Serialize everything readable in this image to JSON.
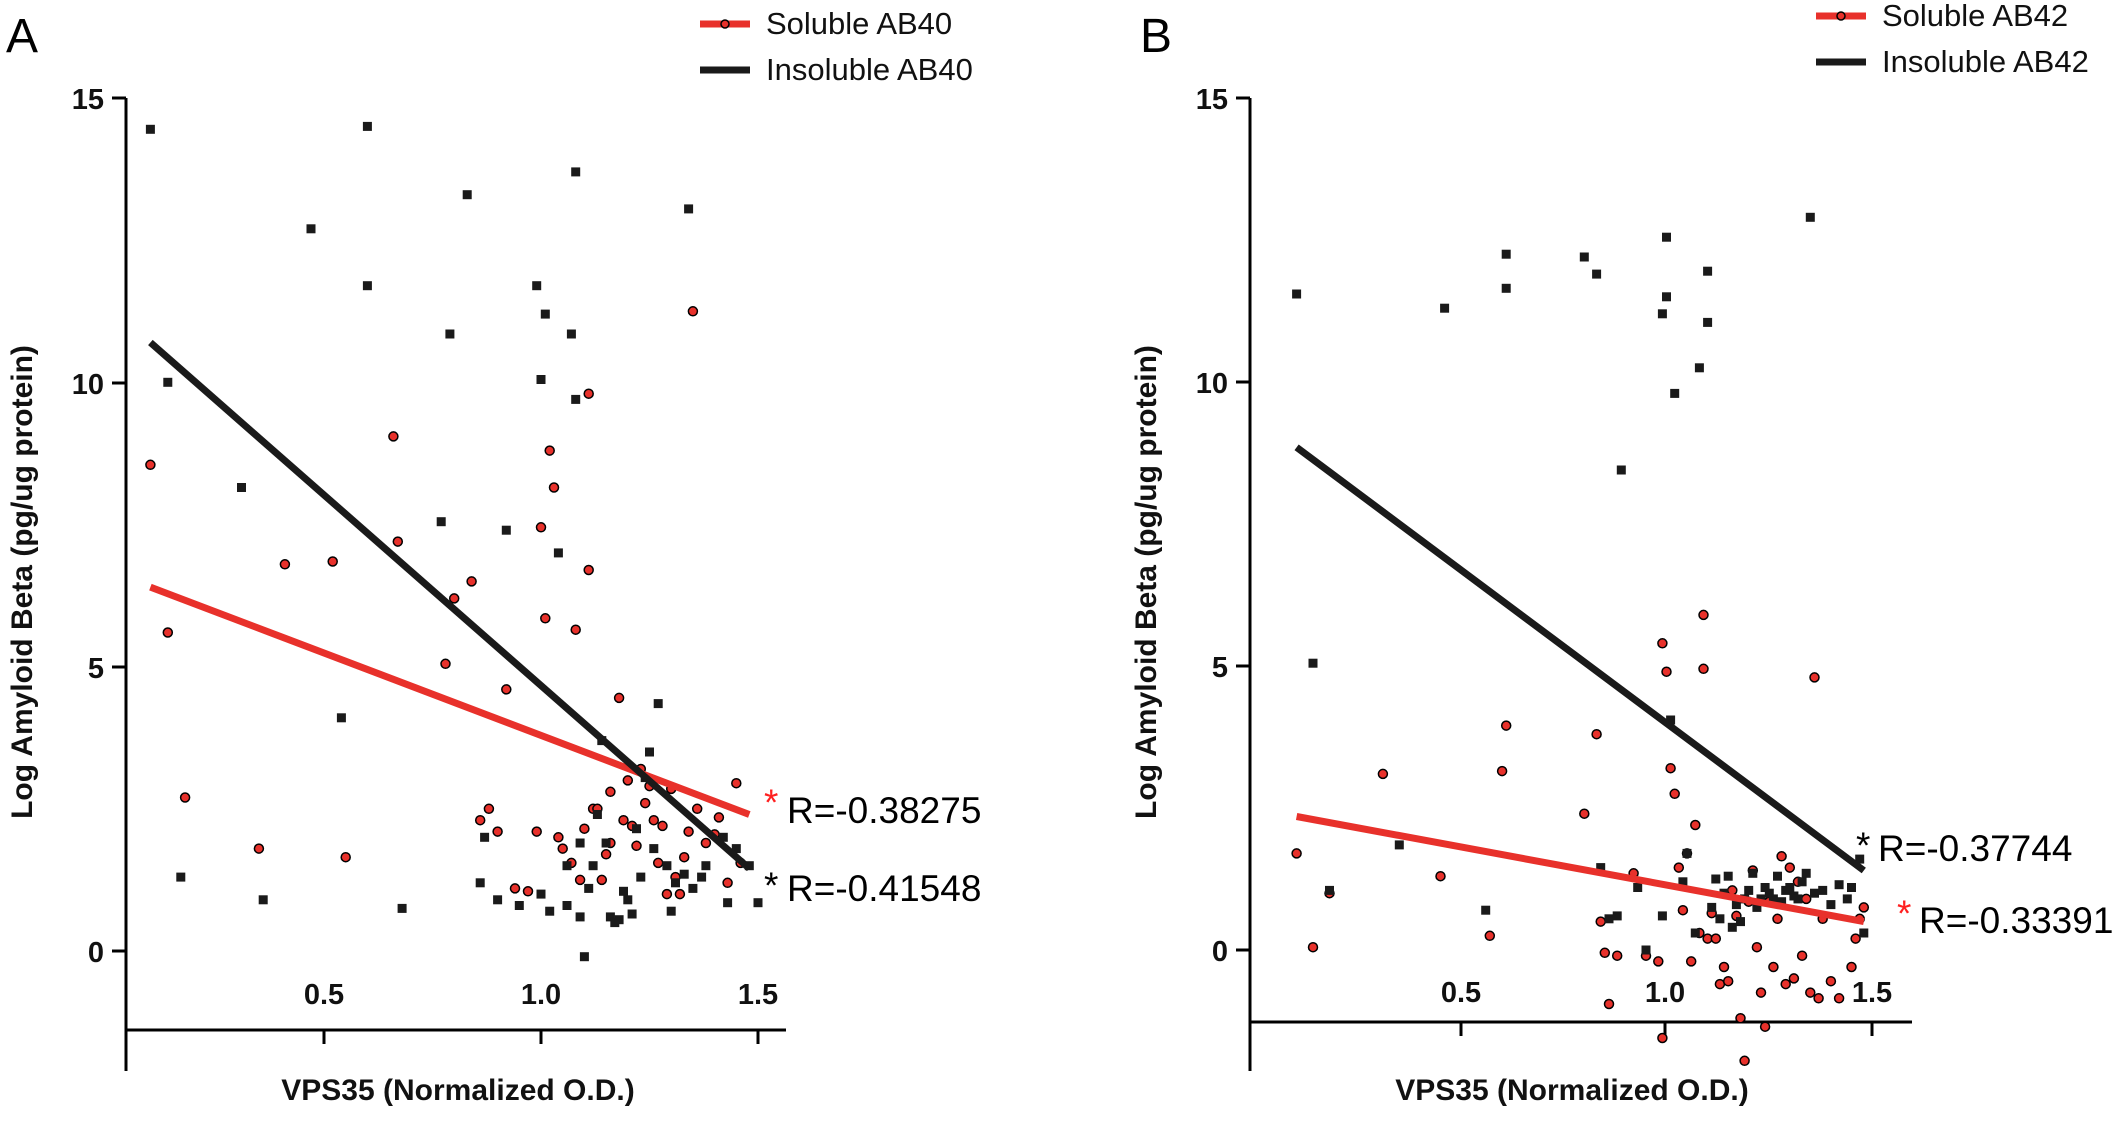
{
  "chart_data": [
    {
      "panel": "A",
      "type": "scatter",
      "xlabel": "VPS35  (Normalized O.D.)",
      "ylabel": "Log Amyloid  Beta (pg/ug protein)",
      "xlim": [
        0.05,
        1.55
      ],
      "ylim": [
        -1.8,
        15.3
      ],
      "x_ticks": [
        0.5,
        1.0,
        1.5
      ],
      "x_tick_labels": [
        "0.5",
        "1.0",
        "1.5"
      ],
      "y_ticks": [
        0,
        5,
        10,
        15
      ],
      "y_tick_labels": [
        "0",
        "5",
        "10",
        "15"
      ],
      "legend_position": "top-right",
      "series": [
        {
          "name": "Soluble AB40",
          "marker": "circle",
          "marker_color": "#e8312b",
          "line_color": "#e8312b",
          "trend": [
            [
              0.1,
              6.4
            ],
            [
              1.48,
              2.4
            ]
          ],
          "r_label": "R=-0.38275",
          "r_star": "*",
          "r_star_color": "#ff2020",
          "points": [
            [
              0.1,
              8.55
            ],
            [
              0.14,
              5.6
            ],
            [
              0.18,
              2.7
            ],
            [
              0.35,
              1.8
            ],
            [
              0.41,
              6.8
            ],
            [
              0.52,
              6.85
            ],
            [
              0.55,
              1.65
            ],
            [
              0.66,
              9.05
            ],
            [
              0.67,
              7.2
            ],
            [
              0.78,
              5.05
            ],
            [
              0.8,
              6.2
            ],
            [
              0.84,
              6.5
            ],
            [
              0.86,
              2.3
            ],
            [
              0.88,
              2.5
            ],
            [
              0.9,
              2.1
            ],
            [
              0.92,
              4.6
            ],
            [
              0.94,
              1.1
            ],
            [
              0.97,
              1.05
            ],
            [
              0.99,
              2.1
            ],
            [
              1.0,
              7.45
            ],
            [
              1.01,
              5.85
            ],
            [
              1.02,
              8.8
            ],
            [
              1.03,
              8.15
            ],
            [
              1.04,
              2.0
            ],
            [
              1.05,
              1.8
            ],
            [
              1.07,
              1.55
            ],
            [
              1.08,
              5.65
            ],
            [
              1.09,
              1.25
            ],
            [
              1.1,
              2.15
            ],
            [
              1.11,
              9.8
            ],
            [
              1.11,
              6.7
            ],
            [
              1.12,
              2.5
            ],
            [
              1.13,
              2.5
            ],
            [
              1.14,
              1.25
            ],
            [
              1.15,
              1.7
            ],
            [
              1.16,
              2.8
            ],
            [
              1.16,
              1.9
            ],
            [
              1.18,
              4.45
            ],
            [
              1.19,
              2.3
            ],
            [
              1.2,
              3.0
            ],
            [
              1.21,
              2.2
            ],
            [
              1.22,
              1.85
            ],
            [
              1.23,
              3.2
            ],
            [
              1.24,
              2.6
            ],
            [
              1.25,
              2.9
            ],
            [
              1.26,
              2.3
            ],
            [
              1.27,
              1.55
            ],
            [
              1.28,
              2.2
            ],
            [
              1.29,
              1.0
            ],
            [
              1.3,
              2.85
            ],
            [
              1.31,
              1.3
            ],
            [
              1.32,
              1.0
            ],
            [
              1.33,
              1.65
            ],
            [
              1.34,
              2.1
            ],
            [
              1.35,
              11.25
            ],
            [
              1.36,
              2.5
            ],
            [
              1.38,
              1.9
            ],
            [
              1.4,
              2.05
            ],
            [
              1.41,
              2.35
            ],
            [
              1.43,
              1.2
            ],
            [
              1.45,
              2.95
            ],
            [
              1.46,
              1.55
            ]
          ]
        },
        {
          "name": "Insoluble AB40",
          "marker": "square",
          "marker_color": "#1a1a1a",
          "line_color": "#1a1a1a",
          "trend": [
            [
              0.1,
              10.7
            ],
            [
              1.48,
              1.45
            ]
          ],
          "r_label": "R=-0.41548",
          "r_star": "*",
          "r_star_color": "#000000",
          "points": [
            [
              0.1,
              14.45
            ],
            [
              0.14,
              10.0
            ],
            [
              0.17,
              1.3
            ],
            [
              0.31,
              8.15
            ],
            [
              0.36,
              0.9
            ],
            [
              0.47,
              12.7
            ],
            [
              0.54,
              4.1
            ],
            [
              0.6,
              14.5
            ],
            [
              0.6,
              11.7
            ],
            [
              0.68,
              0.75
            ],
            [
              0.77,
              7.55
            ],
            [
              0.79,
              10.85
            ],
            [
              0.83,
              13.3
            ],
            [
              0.86,
              1.2
            ],
            [
              0.87,
              2.0
            ],
            [
              0.9,
              0.9
            ],
            [
              0.92,
              7.4
            ],
            [
              0.95,
              0.8
            ],
            [
              0.99,
              11.7
            ],
            [
              1.0,
              10.05
            ],
            [
              1.0,
              1.0
            ],
            [
              1.01,
              11.2
            ],
            [
              1.02,
              0.7
            ],
            [
              1.04,
              7.0
            ],
            [
              1.06,
              1.5
            ],
            [
              1.06,
              0.8
            ],
            [
              1.07,
              10.85
            ],
            [
              1.08,
              9.7
            ],
            [
              1.08,
              13.7
            ],
            [
              1.09,
              1.9
            ],
            [
              1.09,
              0.6
            ],
            [
              1.1,
              -0.1
            ],
            [
              1.11,
              1.1
            ],
            [
              1.12,
              1.5
            ],
            [
              1.13,
              2.4
            ],
            [
              1.14,
              3.7
            ],
            [
              1.15,
              1.9
            ],
            [
              1.16,
              0.6
            ],
            [
              1.17,
              0.5
            ],
            [
              1.18,
              0.55
            ],
            [
              1.19,
              1.05
            ],
            [
              1.2,
              0.9
            ],
            [
              1.21,
              0.65
            ],
            [
              1.22,
              2.15
            ],
            [
              1.23,
              1.3
            ],
            [
              1.24,
              3.05
            ],
            [
              1.25,
              3.5
            ],
            [
              1.26,
              1.8
            ],
            [
              1.27,
              4.35
            ],
            [
              1.29,
              1.5
            ],
            [
              1.3,
              0.7
            ],
            [
              1.31,
              1.2
            ],
            [
              1.33,
              1.35
            ],
            [
              1.34,
              13.05
            ],
            [
              1.35,
              1.1
            ],
            [
              1.37,
              1.3
            ],
            [
              1.38,
              1.5
            ],
            [
              1.42,
              2.0
            ],
            [
              1.43,
              0.85
            ],
            [
              1.45,
              1.8
            ],
            [
              1.48,
              1.5
            ],
            [
              1.5,
              0.85
            ]
          ]
        }
      ]
    },
    {
      "panel": "B",
      "type": "scatter",
      "xlabel": "VPS35  (Normalized O.D.)",
      "ylabel": "Log Amyloid  Beta (pg/ug protein)",
      "xlim": [
        0.05,
        1.55
      ],
      "ylim": [
        -2.0,
        15.3
      ],
      "x_ticks": [
        0.5,
        1.0,
        1.5
      ],
      "x_tick_labels": [
        "0.5",
        "1.0",
        "1.5"
      ],
      "y_ticks": [
        0,
        5,
        10,
        15
      ],
      "y_tick_labels": [
        "0",
        "5",
        "10",
        "15"
      ],
      "legend_position": "top-right",
      "series": [
        {
          "name": "Soluble AB42",
          "marker": "circle",
          "marker_color": "#e8312b",
          "line_color": "#e8312b",
          "trend": [
            [
              0.1,
              2.35
            ],
            [
              1.48,
              0.5
            ]
          ],
          "r_label": "R=-0.33391",
          "r_star": "*",
          "r_star_color": "#ff2020",
          "points": [
            [
              0.1,
              1.7
            ],
            [
              0.14,
              0.05
            ],
            [
              0.18,
              1.0
            ],
            [
              0.31,
              3.1
            ],
            [
              0.45,
              1.3
            ],
            [
              0.57,
              0.25
            ],
            [
              0.6,
              3.15
            ],
            [
              0.61,
              3.95
            ],
            [
              0.8,
              2.4
            ],
            [
              0.83,
              3.8
            ],
            [
              0.84,
              0.5
            ],
            [
              0.85,
              -0.05
            ],
            [
              0.86,
              -0.95
            ],
            [
              0.88,
              -0.1
            ],
            [
              0.92,
              1.35
            ],
            [
              0.95,
              -0.1
            ],
            [
              0.98,
              -0.2
            ],
            [
              0.99,
              5.4
            ],
            [
              0.99,
              -1.55
            ],
            [
              1.0,
              4.9
            ],
            [
              1.01,
              3.2
            ],
            [
              1.02,
              2.75
            ],
            [
              1.03,
              1.45
            ],
            [
              1.04,
              0.7
            ],
            [
              1.05,
              1.7
            ],
            [
              1.06,
              -0.2
            ],
            [
              1.07,
              2.2
            ],
            [
              1.08,
              0.3
            ],
            [
              1.09,
              4.95
            ],
            [
              1.09,
              5.9
            ],
            [
              1.1,
              0.2
            ],
            [
              1.11,
              0.65
            ],
            [
              1.12,
              0.2
            ],
            [
              1.13,
              -0.6
            ],
            [
              1.14,
              -0.3
            ],
            [
              1.15,
              -0.55
            ],
            [
              1.16,
              1.05
            ],
            [
              1.17,
              0.6
            ],
            [
              1.18,
              -1.2
            ],
            [
              1.19,
              -1.95
            ],
            [
              1.2,
              0.85
            ],
            [
              1.21,
              1.4
            ],
            [
              1.22,
              0.05
            ],
            [
              1.23,
              -0.75
            ],
            [
              1.24,
              -1.35
            ],
            [
              1.25,
              0.85
            ],
            [
              1.26,
              -0.3
            ],
            [
              1.27,
              0.55
            ],
            [
              1.28,
              1.65
            ],
            [
              1.29,
              -0.6
            ],
            [
              1.3,
              1.45
            ],
            [
              1.31,
              -0.5
            ],
            [
              1.32,
              1.2
            ],
            [
              1.33,
              -0.1
            ],
            [
              1.34,
              0.9
            ],
            [
              1.35,
              -0.75
            ],
            [
              1.36,
              4.8
            ],
            [
              1.37,
              -0.85
            ],
            [
              1.38,
              0.55
            ],
            [
              1.4,
              -0.55
            ],
            [
              1.42,
              -0.85
            ],
            [
              1.45,
              -0.3
            ],
            [
              1.46,
              0.2
            ],
            [
              1.47,
              0.55
            ],
            [
              1.48,
              0.75
            ]
          ]
        },
        {
          "name": "Insoluble AB42",
          "marker": "square",
          "marker_color": "#1a1a1a",
          "line_color": "#1a1a1a",
          "trend": [
            [
              0.1,
              8.85
            ],
            [
              1.48,
              1.4
            ]
          ],
          "r_label": "R=-0.37744",
          "r_star": "*",
          "r_star_color": "#000000",
          "points": [
            [
              0.1,
              11.55
            ],
            [
              0.14,
              5.05
            ],
            [
              0.18,
              1.05
            ],
            [
              0.35,
              1.85
            ],
            [
              0.46,
              11.3
            ],
            [
              0.56,
              0.7
            ],
            [
              0.61,
              12.25
            ],
            [
              0.61,
              11.65
            ],
            [
              0.8,
              12.2
            ],
            [
              0.83,
              11.9
            ],
            [
              0.84,
              1.45
            ],
            [
              0.86,
              0.55
            ],
            [
              0.88,
              0.6
            ],
            [
              0.89,
              8.45
            ],
            [
              0.93,
              1.1
            ],
            [
              0.95,
              0.0
            ],
            [
              0.99,
              11.2
            ],
            [
              0.99,
              0.6
            ],
            [
              1.0,
              11.5
            ],
            [
              1.0,
              12.55
            ],
            [
              1.01,
              4.05
            ],
            [
              1.02,
              9.8
            ],
            [
              1.04,
              1.2
            ],
            [
              1.05,
              1.7
            ],
            [
              1.07,
              0.3
            ],
            [
              1.08,
              10.25
            ],
            [
              1.1,
              11.95
            ],
            [
              1.1,
              11.05
            ],
            [
              1.11,
              0.75
            ],
            [
              1.12,
              1.25
            ],
            [
              1.13,
              0.55
            ],
            [
              1.14,
              1.0
            ],
            [
              1.15,
              1.3
            ],
            [
              1.16,
              0.4
            ],
            [
              1.17,
              0.8
            ],
            [
              1.18,
              0.5
            ],
            [
              1.19,
              0.9
            ],
            [
              1.2,
              1.05
            ],
            [
              1.21,
              1.35
            ],
            [
              1.22,
              0.75
            ],
            [
              1.23,
              0.9
            ],
            [
              1.24,
              1.1
            ],
            [
              1.25,
              1.0
            ],
            [
              1.26,
              0.9
            ],
            [
              1.27,
              1.3
            ],
            [
              1.28,
              0.85
            ],
            [
              1.29,
              1.05
            ],
            [
              1.3,
              1.1
            ],
            [
              1.31,
              0.95
            ],
            [
              1.32,
              0.9
            ],
            [
              1.33,
              1.2
            ],
            [
              1.34,
              1.35
            ],
            [
              1.35,
              12.9
            ],
            [
              1.36,
              1.0
            ],
            [
              1.38,
              1.05
            ],
            [
              1.4,
              0.8
            ],
            [
              1.42,
              1.15
            ],
            [
              1.44,
              0.9
            ],
            [
              1.45,
              1.1
            ],
            [
              1.47,
              1.6
            ],
            [
              1.48,
              0.3
            ]
          ]
        }
      ]
    }
  ]
}
